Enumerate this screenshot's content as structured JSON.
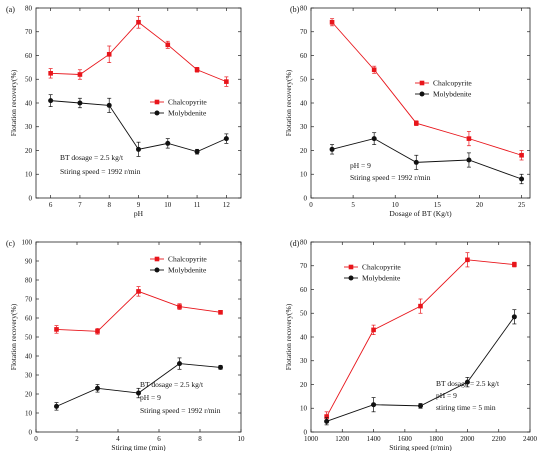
{
  "colors": {
    "Chalcopyrite": "#e8151b",
    "Molybdenite": "#111111"
  },
  "chart_data": [
    {
      "panel": "(a)",
      "type": "line",
      "xlabel": "pH",
      "ylabel": "Flotation recovery(%)",
      "xlim": [
        5.5,
        12.5
      ],
      "ylim": [
        0,
        80
      ],
      "xticks": [
        6,
        7,
        8,
        9,
        10,
        11,
        12
      ],
      "yticks": [
        0,
        10,
        20,
        30,
        40,
        50,
        60,
        70,
        80
      ],
      "legend_position": "middle-right",
      "series": [
        {
          "name": "Chalcopyrite",
          "marker": "square",
          "x": [
            6,
            7,
            8,
            9,
            10,
            11,
            12
          ],
          "y": [
            52.5,
            52,
            60.5,
            74,
            64.5,
            54,
            49
          ],
          "err": [
            2,
            2,
            3.5,
            2.5,
            1.5,
            1,
            2
          ]
        },
        {
          "name": "Molybdenite",
          "marker": "circle",
          "x": [
            6,
            7,
            8,
            9,
            10,
            11,
            12
          ],
          "y": [
            41,
            40,
            39,
            20.5,
            23,
            19.5,
            25
          ],
          "err": [
            2.5,
            2,
            3,
            3,
            2,
            1,
            2
          ]
        }
      ],
      "annotations": [
        "BT dosage = 2.5 kg/t",
        "Stiring speed = 1992 r/min"
      ]
    },
    {
      "panel": "(b)",
      "type": "line",
      "xlabel": "Dosage of  BT (Kg/t)",
      "ylabel": "Flotation recovery(%)",
      "xlim": [
        0,
        26
      ],
      "ylim": [
        0,
        80
      ],
      "xticks": [
        0,
        5,
        10,
        15,
        20,
        25
      ],
      "yticks": [
        0,
        10,
        20,
        30,
        40,
        50,
        60,
        70,
        80
      ],
      "legend_position": "middle-right",
      "series": [
        {
          "name": "Chalcopyrite",
          "marker": "square",
          "x": [
            2.5,
            7.5,
            12.5,
            18.75,
            25
          ],
          "y": [
            74,
            54,
            31.5,
            25,
            18
          ],
          "err": [
            1.5,
            1.5,
            1,
            3,
            2
          ]
        },
        {
          "name": "Molybdenite",
          "marker": "circle",
          "x": [
            2.5,
            7.5,
            12.5,
            18.75,
            25
          ],
          "y": [
            20.5,
            25,
            15,
            16,
            8
          ],
          "err": [
            2,
            2.5,
            3,
            3,
            2
          ]
        }
      ],
      "annotations": [
        "pH = 9",
        "Stiring speed = 1992 r/min"
      ]
    },
    {
      "panel": "(c)",
      "type": "line",
      "xlabel": "Stiring time (min)",
      "ylabel": "Flotation recovery(%)",
      "xlim": [
        0,
        10
      ],
      "ylim": [
        0,
        100
      ],
      "xticks": [
        0,
        2,
        4,
        6,
        8,
        10
      ],
      "yticks": [
        0,
        10,
        20,
        30,
        40,
        50,
        60,
        70,
        80,
        90,
        100
      ],
      "legend_position": "upper-right",
      "series": [
        {
          "name": "Chalcopyrite",
          "marker": "square",
          "x": [
            1,
            3,
            5,
            7,
            9
          ],
          "y": [
            54,
            53,
            74,
            66,
            63
          ],
          "err": [
            2,
            1.5,
            2.5,
            1.5,
            1
          ]
        },
        {
          "name": "Molybdenite",
          "marker": "circle",
          "x": [
            1,
            3,
            5,
            7,
            9
          ],
          "y": [
            13.5,
            23,
            20.5,
            36,
            34
          ],
          "err": [
            2,
            2,
            2.5,
            3,
            1
          ]
        }
      ],
      "annotations": [
        "BT dosage = 2.5 kg/t",
        "pH = 9",
        "Stiring speed = 1992 r/min"
      ]
    },
    {
      "panel": "(d)",
      "type": "line",
      "xlabel": "Stiring speed (r/min)",
      "ylabel": "Flotation recovery(%)",
      "xlim": [
        1000,
        2400
      ],
      "ylim": [
        0,
        80
      ],
      "xticks": [
        1000,
        1200,
        1400,
        1600,
        1800,
        2000,
        2200,
        2400
      ],
      "yticks": [
        0,
        10,
        20,
        30,
        40,
        50,
        60,
        70,
        80
      ],
      "legend_position": "upper-left",
      "series": [
        {
          "name": "Chalcopyrite",
          "marker": "square",
          "x": [
            1100,
            1400,
            1700,
            2000,
            2300
          ],
          "y": [
            6.5,
            43,
            53,
            72.5,
            70.5
          ],
          "err": [
            2,
            2,
            3,
            3,
            1
          ]
        },
        {
          "name": "Molybdenite",
          "marker": "circle",
          "x": [
            1100,
            1400,
            1700,
            2000,
            2300
          ],
          "y": [
            4.5,
            11.5,
            11,
            21,
            48.5
          ],
          "err": [
            1.5,
            3,
            1,
            2,
            3
          ]
        }
      ],
      "annotations": [
        "BT dosage = 2.5 kg/t",
        "pH = 9",
        "stiring time = 5 min"
      ]
    }
  ]
}
